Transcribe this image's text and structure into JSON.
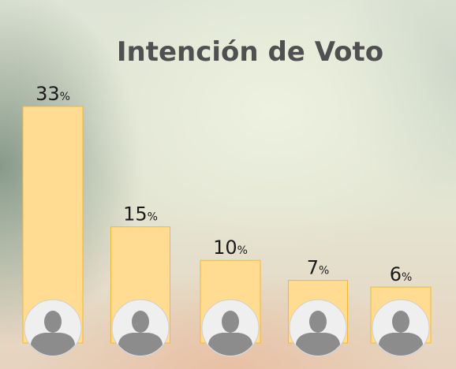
{
  "chart_data": {
    "type": "bar",
    "title": "Intención de Voto",
    "categories": [
      "",
      "",
      "",
      "",
      ""
    ],
    "values": [
      33,
      15,
      10,
      7,
      6
    ],
    "value_suffix": "%",
    "ylim": [
      0,
      40
    ],
    "grid": false,
    "bar_color": "#ffdc92",
    "bar_border_color": "#f0b935",
    "title_color": "#505050",
    "category_marker": "person-avatar-icon"
  }
}
